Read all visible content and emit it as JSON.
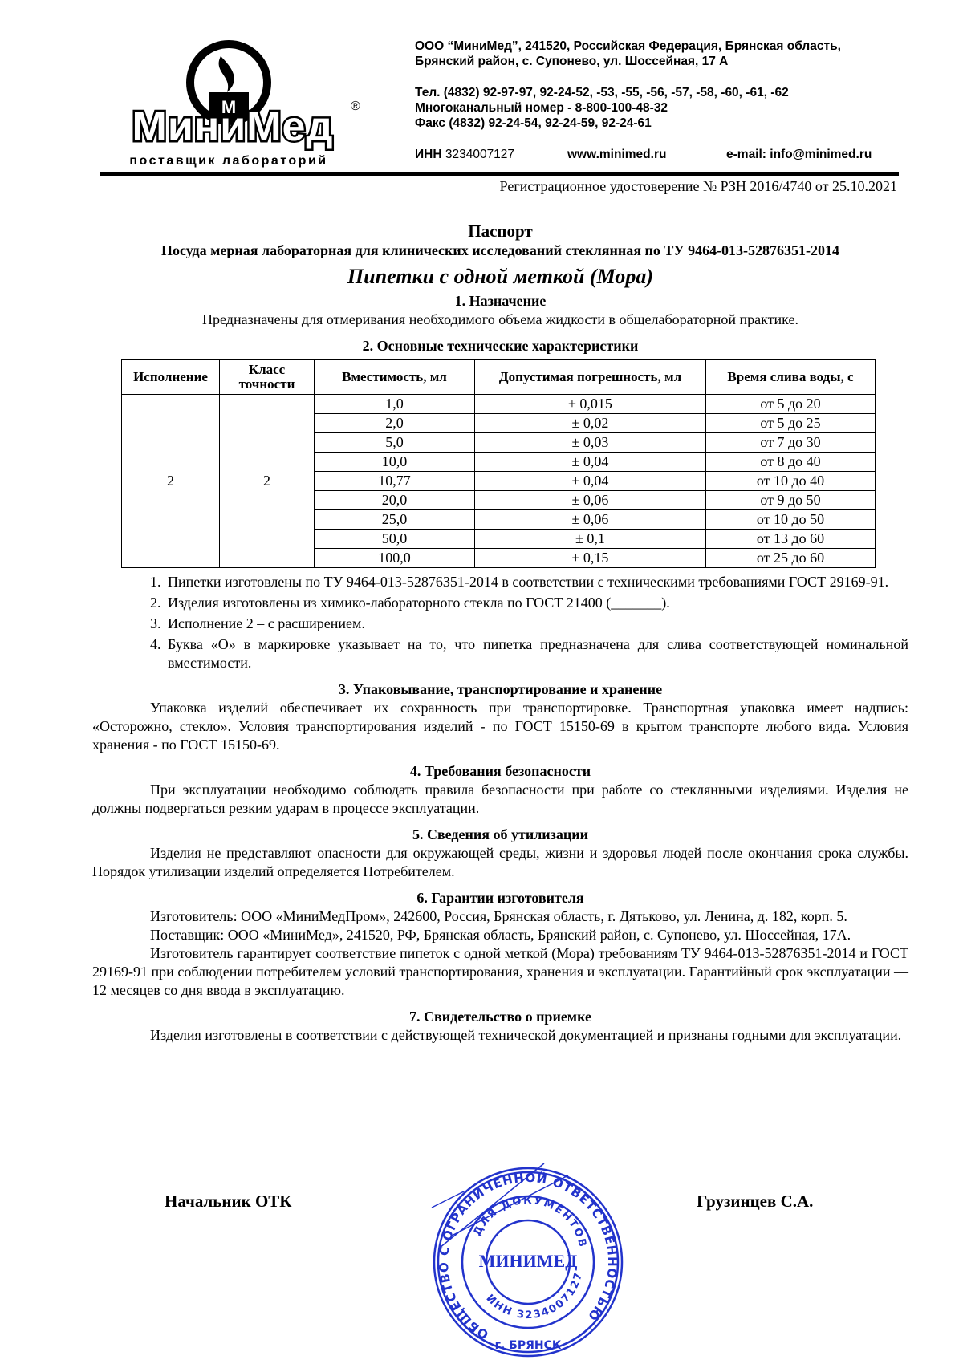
{
  "logo": {
    "brand": "МиниМед",
    "tagline": "поставщик лабораторий",
    "registered": "®"
  },
  "header": {
    "address_line1": "ООО “МиниМед”, 241520, Российская Федерация, Брянская область,",
    "address_line2": "Брянский район, с. Супонево, ул. Шоссейная, 17 А",
    "phone": "Тел. (4832) 92-97-97, 92-24-52, -53, -55, -56, -57, -58, -60, -61, -62",
    "multichannel": "Многоканальный номер - 8-800-100-48-32",
    "fax": "Факс (4832) 92-24-54, 92-24-59, 92-24-61",
    "inn_label": "ИНН",
    "inn": "3234007127",
    "website": "www.minimed.ru",
    "email": "e-mail: info@minimed.ru"
  },
  "registration": "Регистрационное удостоверение № РЗН 2016/4740 от 25.10.2021",
  "doc": {
    "title": "Паспорт",
    "subtitle": "Посуда мерная лабораторная для клинических исследований стеклянная по ТУ 9464-013-52876351-2014",
    "product": "Пипетки с одной меткой (Мора)",
    "s1_head": "1.  Назначение",
    "s1_text": "Предназначены для отмеривания необходимого объема жидкости в общелабораторной практике.",
    "s2_head": "2.  Основные технические характеристики",
    "table": {
      "headers": [
        "Исполнение",
        "Класс точности",
        "Вместимость, мл",
        "Допустимая погрешность, мл",
        "Время слива воды, с"
      ],
      "version": "2",
      "class": "2",
      "rows": [
        {
          "volume": "1,0",
          "error": "± 0,015",
          "time": "от 5 до 20"
        },
        {
          "volume": "2,0",
          "error": "± 0,02",
          "time": "от 5 до 25"
        },
        {
          "volume": "5,0",
          "error": "± 0,03",
          "time": "от 7 до 30"
        },
        {
          "volume": "10,0",
          "error": "± 0,04",
          "time": "от 8 до 40"
        },
        {
          "volume": "10,77",
          "error": "± 0,04",
          "time": "от 10 до 40"
        },
        {
          "volume": "20,0",
          "error": "± 0,06",
          "time": "от 9 до 50"
        },
        {
          "volume": "25,0",
          "error": "± 0,06",
          "time": "от 10 до 50"
        },
        {
          "volume": "50,0",
          "error": "± 0,1",
          "time": "от 13 до 60"
        },
        {
          "volume": "100,0",
          "error": "± 0,15",
          "time": "от 25 до 60"
        }
      ]
    },
    "notes": [
      "Пипетки изготовлены по ТУ 9464-013-52876351-2014 в соответствии с техническими требованиями ГОСТ 29169-91.",
      "Изделия изготовлены из химико-лабораторного стекла по ГОСТ 21400 (_______).",
      "Исполнение 2 – с расширением.",
      "Буква «О» в маркировке указывает на то, что пипетка предназначена для слива соответствующей номинальной вместимости."
    ],
    "s3_head": "3.  Упаковывание, транспортирование и хранение",
    "s3_text": "Упаковка изделий обеспечивает их сохранность при транспортировке. Транспортная упаковка имеет надпись: «Осторожно, стекло». Условия транспортирования изделий - по ГОСТ 15150-69 в крытом транспорте любого вида. Условия хранения - по ГОСТ 15150-69.",
    "s4_head": "4.  Требования безопасности",
    "s4_text": "При эксплуатации необходимо соблюдать правила безопасности при работе со стеклянными изделиями. Изделия не должны подвергаться резким ударам в процессе эксплуатации.",
    "s5_head": "5.  Сведения об утилизации",
    "s5_text": "Изделия не представляют опасности для окружающей среды, жизни и здоровья людей после окончания срока службы. Порядок утилизации изделий определяется Потребителем.",
    "s6_head": "6.  Гарантии изготовителя",
    "s6_p1": "Изготовитель: ООО «МиниМедПром», 242600, Россия, Брянская область, г. Дятьково, ул. Ленина, д. 182, корп. 5.",
    "s6_p2": "Поставщик: ООО «МиниМед», 241520, РФ, Брянская область, Брянский район, с. Супонево, ул. Шоссейная, 17А.",
    "s6_p3": "Изготовитель гарантирует соответствие пипеток с одной меткой (Мора) требованиям ТУ 9464-013-52876351-2014 и ГОСТ 29169-91 при соблюдении потребителем условий транспортирования, хранения и эксплуатации. Гарантийный срок эксплуатации — 12 месяцев со дня ввода в эксплуатацию.",
    "s7_head": "7.  Свидетельство о приемке",
    "s7_text": "Изделия изготовлены в соответствии с действующей технической документацией и признаны годными для эксплуатации."
  },
  "signature": {
    "position": "Начальник ОТК",
    "name": "Грузинцев С.А."
  },
  "stamp": {
    "outer": "ОБЩЕСТВО С ОГРАНИЧЕННОЙ ОТВЕТСТВЕННОСТЬЮ",
    "inner": "ДЛЯ ДОКУМЕНТОВ",
    "center": "МИНИМЕД",
    "inn": "ИНН 3234007127",
    "city": "г. БРЯНСК",
    "color": "#2233cc"
  }
}
